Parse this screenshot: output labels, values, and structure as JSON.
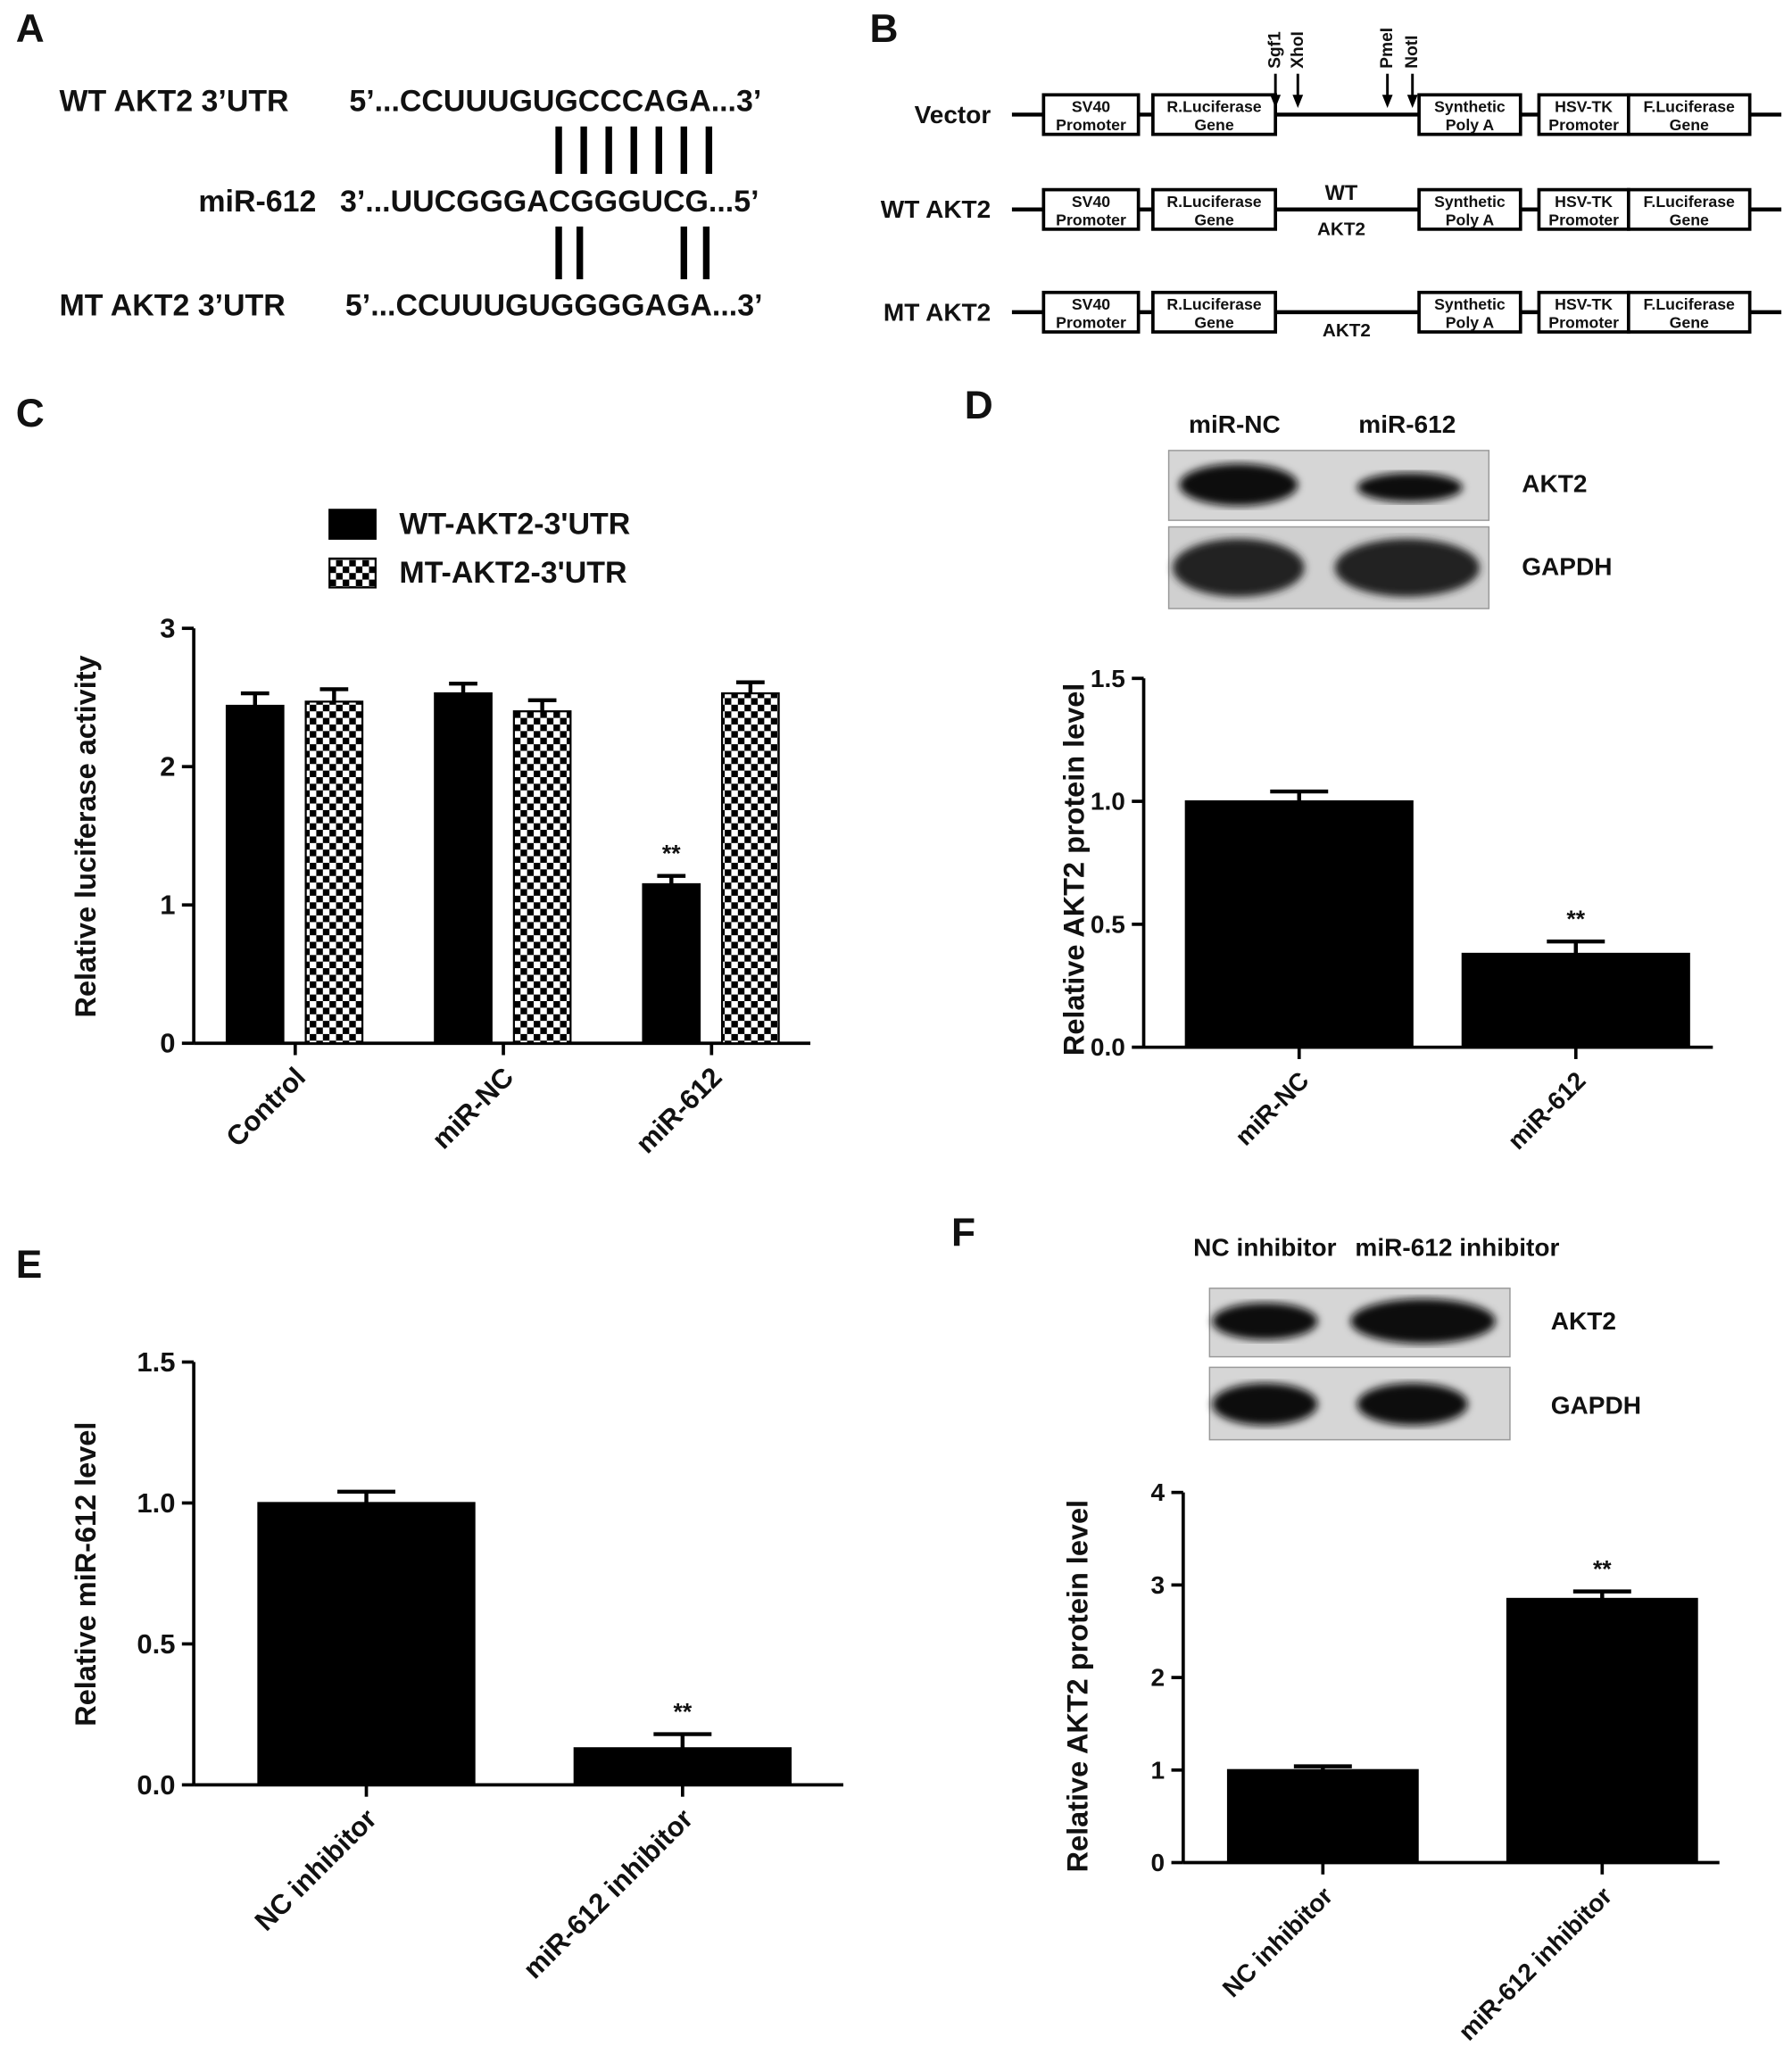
{
  "panel_labels": [
    "A",
    "B",
    "C",
    "D",
    "E",
    "F"
  ],
  "alignment": {
    "rows": [
      {
        "label": "WT AKT2 3’UTR",
        "sequence": "5’...CCUUUGUGCCCAGA...3’"
      },
      {
        "label": "miR-612",
        "sequence": "3’...UUCGGGACGGGUCG...5’"
      },
      {
        "label": "MT AKT2 3’UTR",
        "sequence": "5’...CCUUUGUGGGGAGA...3’"
      }
    ]
  },
  "constructs": {
    "sites": [
      "Sgf1",
      "XhoI",
      "PmeI",
      "NotI"
    ],
    "boxes": [
      [
        "SV40",
        "Promoter"
      ],
      [
        "R.Luciferase",
        "Gene"
      ],
      [
        "Synthetic",
        "Poly A"
      ],
      [
        "HSV-TK",
        "Promoter"
      ],
      [
        "F.Luciferase",
        "Gene"
      ]
    ],
    "rows": [
      {
        "label": "Vector"
      },
      {
        "label": "WT AKT2",
        "insert": [
          "WT",
          "AKT2"
        ]
      },
      {
        "label": "MT AKT2",
        "insert": [
          "AKT2"
        ]
      }
    ]
  },
  "blots": [
    {
      "lanes": [
        "miR-NC",
        "miR-612"
      ],
      "bands": [
        "AKT2",
        "GAPDH"
      ]
    },
    {
      "lanes": [
        "NC inhibitor",
        "miR-612 inhibitor"
      ],
      "bands": [
        "AKT2",
        "GAPDH"
      ]
    }
  ],
  "chart_data": [
    {
      "type": "bar",
      "ylabel": "Relative luciferase activity",
      "categories": [
        "Control",
        "miR-NC",
        "miR-612"
      ],
      "series": [
        {
          "name": "WT-AKT2-3'UTR",
          "color": "#000000",
          "values": [
            2.44,
            2.53,
            1.15
          ],
          "errors": [
            0.09,
            0.07,
            0.06
          ]
        },
        {
          "name": "MT-AKT2-3'UTR",
          "color": "#000000",
          "pattern": "checkerboard",
          "values": [
            2.47,
            2.4,
            2.53
          ],
          "errors": [
            0.09,
            0.08,
            0.08
          ]
        }
      ],
      "annotations": [
        {
          "text": "**",
          "category": "miR-612",
          "series": "WT-AKT2-3'UTR"
        }
      ],
      "ylim": [
        0,
        3
      ],
      "yticks": [
        0,
        1,
        2,
        3
      ]
    },
    {
      "type": "bar",
      "ylabel": "Relative AKT2 protein level",
      "categories": [
        "miR-NC",
        "miR-612"
      ],
      "color": "#000000",
      "values": [
        1,
        0.38
      ],
      "errors": [
        0.04,
        0.05
      ],
      "annotations": [
        {
          "text": "**",
          "category": "miR-612"
        }
      ],
      "ylim": [
        0,
        1.5
      ],
      "yticks": [
        {
          "value": 0,
          "label": "0.0"
        },
        0.5,
        {
          "value": 1,
          "label": "1.0"
        },
        1.5
      ]
    },
    {
      "type": "bar",
      "ylabel": "Relative miR-612 level",
      "categories": [
        "NC inhibitor",
        "miR-612 inhibitor"
      ],
      "color": "#000000",
      "values": [
        1,
        0.13
      ],
      "errors": [
        0.04,
        0.05
      ],
      "annotations": [
        {
          "text": "**",
          "category": "miR-612 inhibitor"
        }
      ],
      "ylim": [
        0,
        1.5
      ],
      "yticks": [
        {
          "value": 0,
          "label": "0.0"
        },
        0.5,
        {
          "value": 1,
          "label": "1.0"
        },
        1.5
      ]
    },
    {
      "type": "bar",
      "ylabel": "Relative AKT2 protein level",
      "categories": [
        "NC inhibitor",
        "miR-612 inhibitor"
      ],
      "color": "#000000",
      "values": [
        1,
        2.85
      ],
      "errors": [
        0.04,
        0.08
      ],
      "annotations": [
        {
          "text": "**",
          "category": "miR-612 inhibitor"
        }
      ],
      "ylim": [
        0,
        4
      ],
      "yticks": [
        0,
        1,
        2,
        3,
        4
      ]
    }
  ]
}
